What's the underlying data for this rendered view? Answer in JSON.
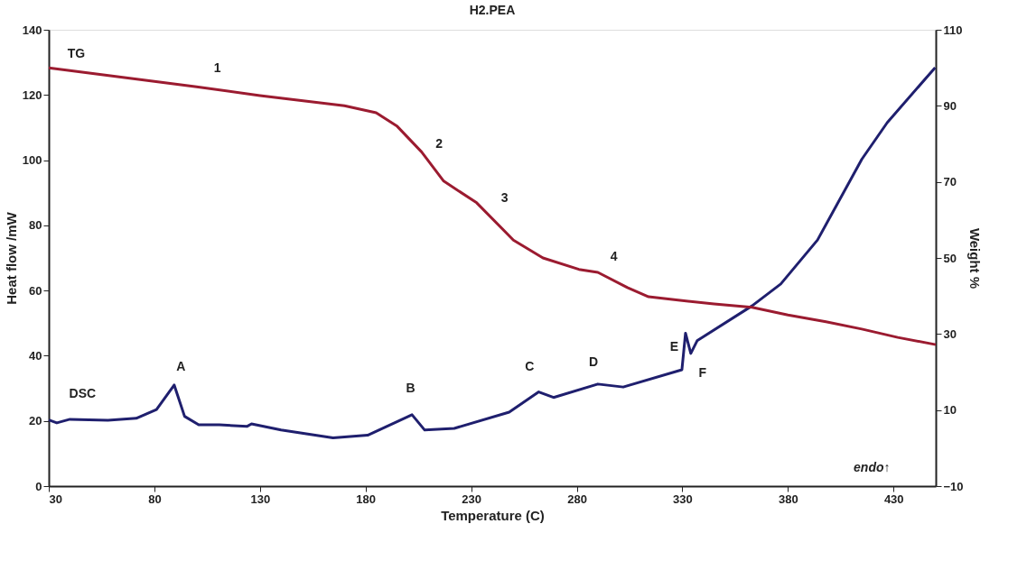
{
  "chart_data": {
    "type": "line",
    "title": "H2.PEA",
    "xlabel": "Temperature (C)",
    "ylabel": "Heat flow /mW",
    "y2label": "Weight %",
    "xlim": [
      30,
      450
    ],
    "xticks": [
      30,
      80,
      130,
      180,
      230,
      280,
      330,
      380,
      430
    ],
    "ylim": [
      0,
      140
    ],
    "yticks": [
      0,
      20,
      40,
      60,
      80,
      100,
      120,
      140
    ],
    "y2lim": [
      -10,
      110
    ],
    "y2ticks": [
      -10,
      10,
      30,
      50,
      70,
      90,
      110
    ],
    "grid": false,
    "marker": "none",
    "line_style": "solid",
    "series": [
      {
        "color": "#1f1f6e",
        "x": [
          30,
          33.8,
          40,
          58,
          71.4,
          81,
          89.4,
          94.3,
          101,
          110.8,
          123.8,
          126,
          140,
          164.6,
          181,
          202,
          208,
          222,
          248,
          262,
          269,
          290,
          302,
          329.8,
          331.5,
          334,
          337,
          363,
          376.6,
          394,
          415,
          427,
          449.7
        ],
        "values": [
          20.3,
          19.4,
          20.5,
          20.2,
          20.8,
          23.5,
          31,
          21.4,
          18.8,
          18.8,
          18.3,
          19.1,
          17.2,
          14.8,
          15.6,
          21.9,
          17.2,
          17.7,
          22.7,
          28.9,
          27.2,
          31.3,
          30.4,
          35.7,
          46.9,
          40.7,
          44.6,
          55.3,
          62,
          75.5,
          100.3,
          111.5,
          128.4
        ]
      },
      {
        "color": "#9b1b30",
        "axis": "y2",
        "x": [
          30,
          100,
          130,
          170,
          185,
          195,
          206.5,
          217,
          232.6,
          250,
          264,
          281,
          290,
          304,
          314,
          328,
          345,
          363,
          380,
          398,
          415,
          432,
          450
        ],
        "values": [
          100,
          95,
          92.7,
          90,
          88.2,
          84.6,
          77.9,
          70.2,
          64.5,
          54.7,
          50,
          47,
          46.2,
          42.2,
          39.8,
          38.9,
          37.9,
          37,
          35,
          33.2,
          31.3,
          29.1,
          27.2
        ]
      }
    ],
    "annotations": [
      "TG",
      "1",
      "2",
      "3",
      "4",
      "DSC",
      "A",
      "B",
      "C",
      "D",
      "E",
      "F",
      "endo↑"
    ]
  }
}
